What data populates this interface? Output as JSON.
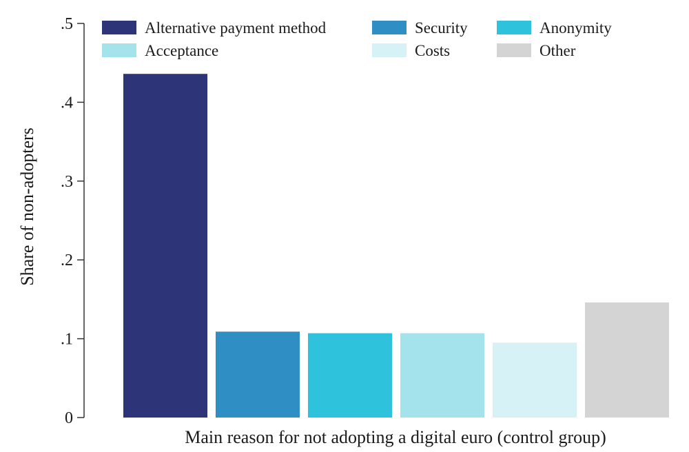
{
  "chart_data": {
    "type": "bar",
    "title": "",
    "xlabel": "Main reason for not adopting a digital euro (control group)",
    "ylabel": "Share of non-adopters",
    "ylim": [
      0,
      0.5
    ],
    "yticks": [
      {
        "value": 0,
        "label": "0"
      },
      {
        "value": 0.1,
        "label": ".1"
      },
      {
        "value": 0.2,
        "label": ".2"
      },
      {
        "value": 0.3,
        "label": ".3"
      },
      {
        "value": 0.4,
        "label": ".4"
      },
      {
        "value": 0.5,
        "label": ".5"
      }
    ],
    "grid": false,
    "legend_position": "top",
    "categories": [
      "Alternative payment method",
      "Security",
      "Anonymity",
      "Acceptance",
      "Costs",
      "Other"
    ],
    "values": [
      0.436,
      0.109,
      0.107,
      0.107,
      0.095,
      0.146
    ],
    "colors": [
      "#2e3478",
      "#2f8fc4",
      "#2ec2dc",
      "#a4e2ec",
      "#d6f2f6",
      "#d4d4d4"
    ]
  }
}
